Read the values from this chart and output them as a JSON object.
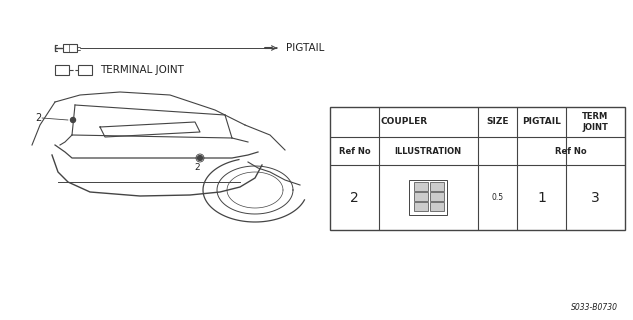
{
  "bg_color": "#ffffff",
  "part_code": "S033-B0730",
  "pigtail_label": "PIGTAIL",
  "terminal_joint_label": "TERMINAL JOINT",
  "table": {
    "coupler_header": "COUPLER",
    "size_header": "SIZE",
    "pigtail_header": "PIGTAIL",
    "term_joint_header": "TERM\nJOINT",
    "ref_no_label": "Ref No",
    "illustration_label": "ILLUSTRATION",
    "ref_no_label2": "Ref No",
    "row": {
      "ref_no": "2",
      "size": "0.5",
      "pigtail": "1",
      "term_joint": "3"
    }
  },
  "lc": "#444444",
  "tc": "#222222"
}
